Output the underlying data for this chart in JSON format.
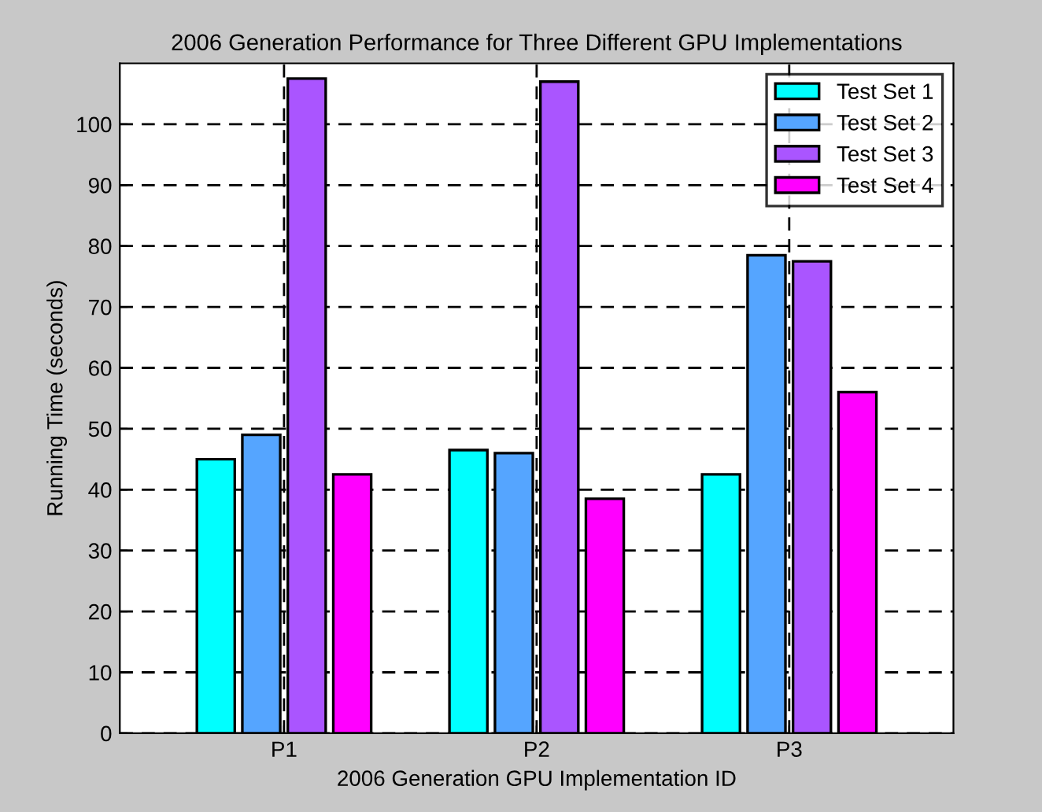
{
  "chart_data": {
    "type": "bar",
    "title": "2006 Generation Performance for Three Different GPU Implementations",
    "xlabel": "2006 Generation GPU Implementation ID",
    "ylabel": "Running Time (seconds)",
    "categories": [
      "P1",
      "P2",
      "P3"
    ],
    "series": [
      {
        "name": "Test Set 1",
        "color": "#00ffff",
        "values": [
          45,
          46.5,
          42.5
        ]
      },
      {
        "name": "Test Set 2",
        "color": "#55a5ff",
        "values": [
          49,
          46,
          78.5
        ]
      },
      {
        "name": "Test Set 3",
        "color": "#aa55ff",
        "values": [
          107.5,
          107,
          77.5
        ]
      },
      {
        "name": "Test Set 4",
        "color": "#ff00ff",
        "values": [
          42.5,
          38.5,
          56
        ]
      }
    ],
    "ylim": [
      0,
      110
    ],
    "yticks": [
      0,
      10,
      20,
      30,
      40,
      50,
      60,
      70,
      80,
      90,
      100
    ],
    "grid": true,
    "legend": "top right",
    "line_style": "dashed"
  }
}
